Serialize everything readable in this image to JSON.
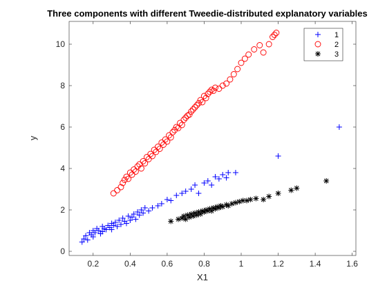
{
  "chart_data": {
    "type": "scatter",
    "title": "Three components with different Tweedie-distributed explanatory variables",
    "xlabel": "X1",
    "ylabel": "y",
    "xlim": [
      0.07,
      1.62
    ],
    "ylim": [
      -0.2,
      11.1
    ],
    "xticks": [
      "0.2",
      "0.4",
      "0.6",
      "0.8",
      "1",
      "1.2",
      "1.4",
      "1.6"
    ],
    "xtick_values": [
      0.2,
      0.4,
      0.6,
      0.8,
      1.0,
      1.2,
      1.4,
      1.6
    ],
    "yticks": [
      "0",
      "2",
      "4",
      "6",
      "8",
      "10"
    ],
    "ytick_values": [
      0,
      2,
      4,
      6,
      8,
      10
    ],
    "grid": false,
    "legend_position": "top-right",
    "series": [
      {
        "name": "1",
        "marker": "plus",
        "color": "#0000ff",
        "points": [
          [
            0.14,
            0.45
          ],
          [
            0.15,
            0.6
          ],
          [
            0.16,
            0.75
          ],
          [
            0.17,
            0.55
          ],
          [
            0.18,
            0.9
          ],
          [
            0.19,
            0.8
          ],
          [
            0.2,
            1.0
          ],
          [
            0.2,
            0.7
          ],
          [
            0.21,
            0.9
          ],
          [
            0.22,
            1.1
          ],
          [
            0.23,
            1.0
          ],
          [
            0.24,
            0.85
          ],
          [
            0.25,
            1.2
          ],
          [
            0.25,
            0.95
          ],
          [
            0.26,
            1.1
          ],
          [
            0.27,
            1.05
          ],
          [
            0.28,
            1.25
          ],
          [
            0.29,
            1.15
          ],
          [
            0.3,
            1.35
          ],
          [
            0.3,
            1.05
          ],
          [
            0.31,
            1.25
          ],
          [
            0.32,
            1.4
          ],
          [
            0.33,
            1.2
          ],
          [
            0.34,
            1.5
          ],
          [
            0.35,
            1.3
          ],
          [
            0.36,
            1.6
          ],
          [
            0.37,
            1.45
          ],
          [
            0.38,
            1.35
          ],
          [
            0.39,
            1.7
          ],
          [
            0.4,
            1.5
          ],
          [
            0.41,
            1.65
          ],
          [
            0.42,
            1.8
          ],
          [
            0.43,
            1.55
          ],
          [
            0.44,
            1.9
          ],
          [
            0.45,
            1.75
          ],
          [
            0.46,
            2.0
          ],
          [
            0.47,
            1.85
          ],
          [
            0.48,
            2.1
          ],
          [
            0.5,
            1.95
          ],
          [
            0.52,
            2.1
          ],
          [
            0.55,
            2.2
          ],
          [
            0.57,
            2.3
          ],
          [
            0.6,
            2.5
          ],
          [
            0.62,
            2.45
          ],
          [
            0.65,
            2.7
          ],
          [
            0.68,
            2.8
          ],
          [
            0.7,
            2.9
          ],
          [
            0.73,
            3.0
          ],
          [
            0.75,
            3.2
          ],
          [
            0.77,
            2.8
          ],
          [
            0.8,
            3.3
          ],
          [
            0.82,
            3.4
          ],
          [
            0.84,
            3.2
          ],
          [
            0.86,
            3.6
          ],
          [
            0.88,
            3.5
          ],
          [
            0.9,
            3.7
          ],
          [
            0.92,
            3.55
          ],
          [
            0.93,
            3.8
          ],
          [
            0.97,
            3.8
          ],
          [
            1.2,
            4.6
          ],
          [
            1.53,
            6.0
          ]
        ]
      },
      {
        "name": "2",
        "marker": "circle",
        "color": "#ff0000",
        "points": [
          [
            0.31,
            2.8
          ],
          [
            0.33,
            2.95
          ],
          [
            0.35,
            3.1
          ],
          [
            0.36,
            3.3
          ],
          [
            0.37,
            3.45
          ],
          [
            0.38,
            3.6
          ],
          [
            0.39,
            3.5
          ],
          [
            0.4,
            3.8
          ],
          [
            0.41,
            3.7
          ],
          [
            0.42,
            3.95
          ],
          [
            0.43,
            3.85
          ],
          [
            0.44,
            4.1
          ],
          [
            0.45,
            4.2
          ],
          [
            0.46,
            4.0
          ],
          [
            0.47,
            4.35
          ],
          [
            0.48,
            4.25
          ],
          [
            0.49,
            4.55
          ],
          [
            0.5,
            4.45
          ],
          [
            0.51,
            4.7
          ],
          [
            0.52,
            4.6
          ],
          [
            0.53,
            4.9
          ],
          [
            0.54,
            4.8
          ],
          [
            0.55,
            5.05
          ],
          [
            0.56,
            4.95
          ],
          [
            0.57,
            5.25
          ],
          [
            0.58,
            5.15
          ],
          [
            0.59,
            5.4
          ],
          [
            0.6,
            5.3
          ],
          [
            0.61,
            5.6
          ],
          [
            0.62,
            5.5
          ],
          [
            0.63,
            5.75
          ],
          [
            0.64,
            5.85
          ],
          [
            0.65,
            6.0
          ],
          [
            0.66,
            5.95
          ],
          [
            0.67,
            6.2
          ],
          [
            0.68,
            6.1
          ],
          [
            0.69,
            6.35
          ],
          [
            0.7,
            6.45
          ],
          [
            0.71,
            6.55
          ],
          [
            0.72,
            6.6
          ],
          [
            0.73,
            6.75
          ],
          [
            0.74,
            6.85
          ],
          [
            0.75,
            6.95
          ],
          [
            0.76,
            7.05
          ],
          [
            0.77,
            7.15
          ],
          [
            0.78,
            7.3
          ],
          [
            0.79,
            7.2
          ],
          [
            0.8,
            7.5
          ],
          [
            0.81,
            7.4
          ],
          [
            0.82,
            7.6
          ],
          [
            0.83,
            7.7
          ],
          [
            0.84,
            7.8
          ],
          [
            0.85,
            7.75
          ],
          [
            0.86,
            7.9
          ],
          [
            0.88,
            7.85
          ],
          [
            0.9,
            8.0
          ],
          [
            0.92,
            8.1
          ],
          [
            0.94,
            8.3
          ],
          [
            0.96,
            8.55
          ],
          [
            0.98,
            8.8
          ],
          [
            1.0,
            9.1
          ],
          [
            1.02,
            9.3
          ],
          [
            1.04,
            9.5
          ],
          [
            1.07,
            9.75
          ],
          [
            1.1,
            9.95
          ],
          [
            1.12,
            9.6
          ],
          [
            1.15,
            10.0
          ],
          [
            1.17,
            10.35
          ],
          [
            1.18,
            10.45
          ],
          [
            1.19,
            10.55
          ]
        ]
      },
      {
        "name": "3",
        "marker": "star",
        "color": "#000000",
        "points": [
          [
            0.62,
            1.45
          ],
          [
            0.66,
            1.55
          ],
          [
            0.68,
            1.6
          ],
          [
            0.69,
            1.7
          ],
          [
            0.7,
            1.55
          ],
          [
            0.71,
            1.75
          ],
          [
            0.72,
            1.65
          ],
          [
            0.73,
            1.8
          ],
          [
            0.74,
            1.7
          ],
          [
            0.75,
            1.85
          ],
          [
            0.76,
            1.75
          ],
          [
            0.77,
            1.9
          ],
          [
            0.78,
            1.8
          ],
          [
            0.79,
            1.95
          ],
          [
            0.8,
            1.9
          ],
          [
            0.81,
            2.0
          ],
          [
            0.82,
            1.95
          ],
          [
            0.83,
            2.05
          ],
          [
            0.84,
            1.95
          ],
          [
            0.85,
            2.1
          ],
          [
            0.86,
            2.05
          ],
          [
            0.87,
            2.15
          ],
          [
            0.88,
            2.1
          ],
          [
            0.89,
            2.2
          ],
          [
            0.9,
            2.15
          ],
          [
            0.92,
            2.25
          ],
          [
            0.93,
            2.2
          ],
          [
            0.95,
            2.3
          ],
          [
            0.97,
            2.35
          ],
          [
            0.99,
            2.4
          ],
          [
            1.01,
            2.45
          ],
          [
            1.03,
            2.45
          ],
          [
            1.05,
            2.5
          ],
          [
            1.08,
            2.55
          ],
          [
            1.12,
            2.5
          ],
          [
            1.15,
            2.65
          ],
          [
            1.2,
            2.8
          ],
          [
            1.27,
            2.95
          ],
          [
            1.3,
            3.05
          ],
          [
            1.46,
            3.4
          ]
        ]
      }
    ]
  }
}
